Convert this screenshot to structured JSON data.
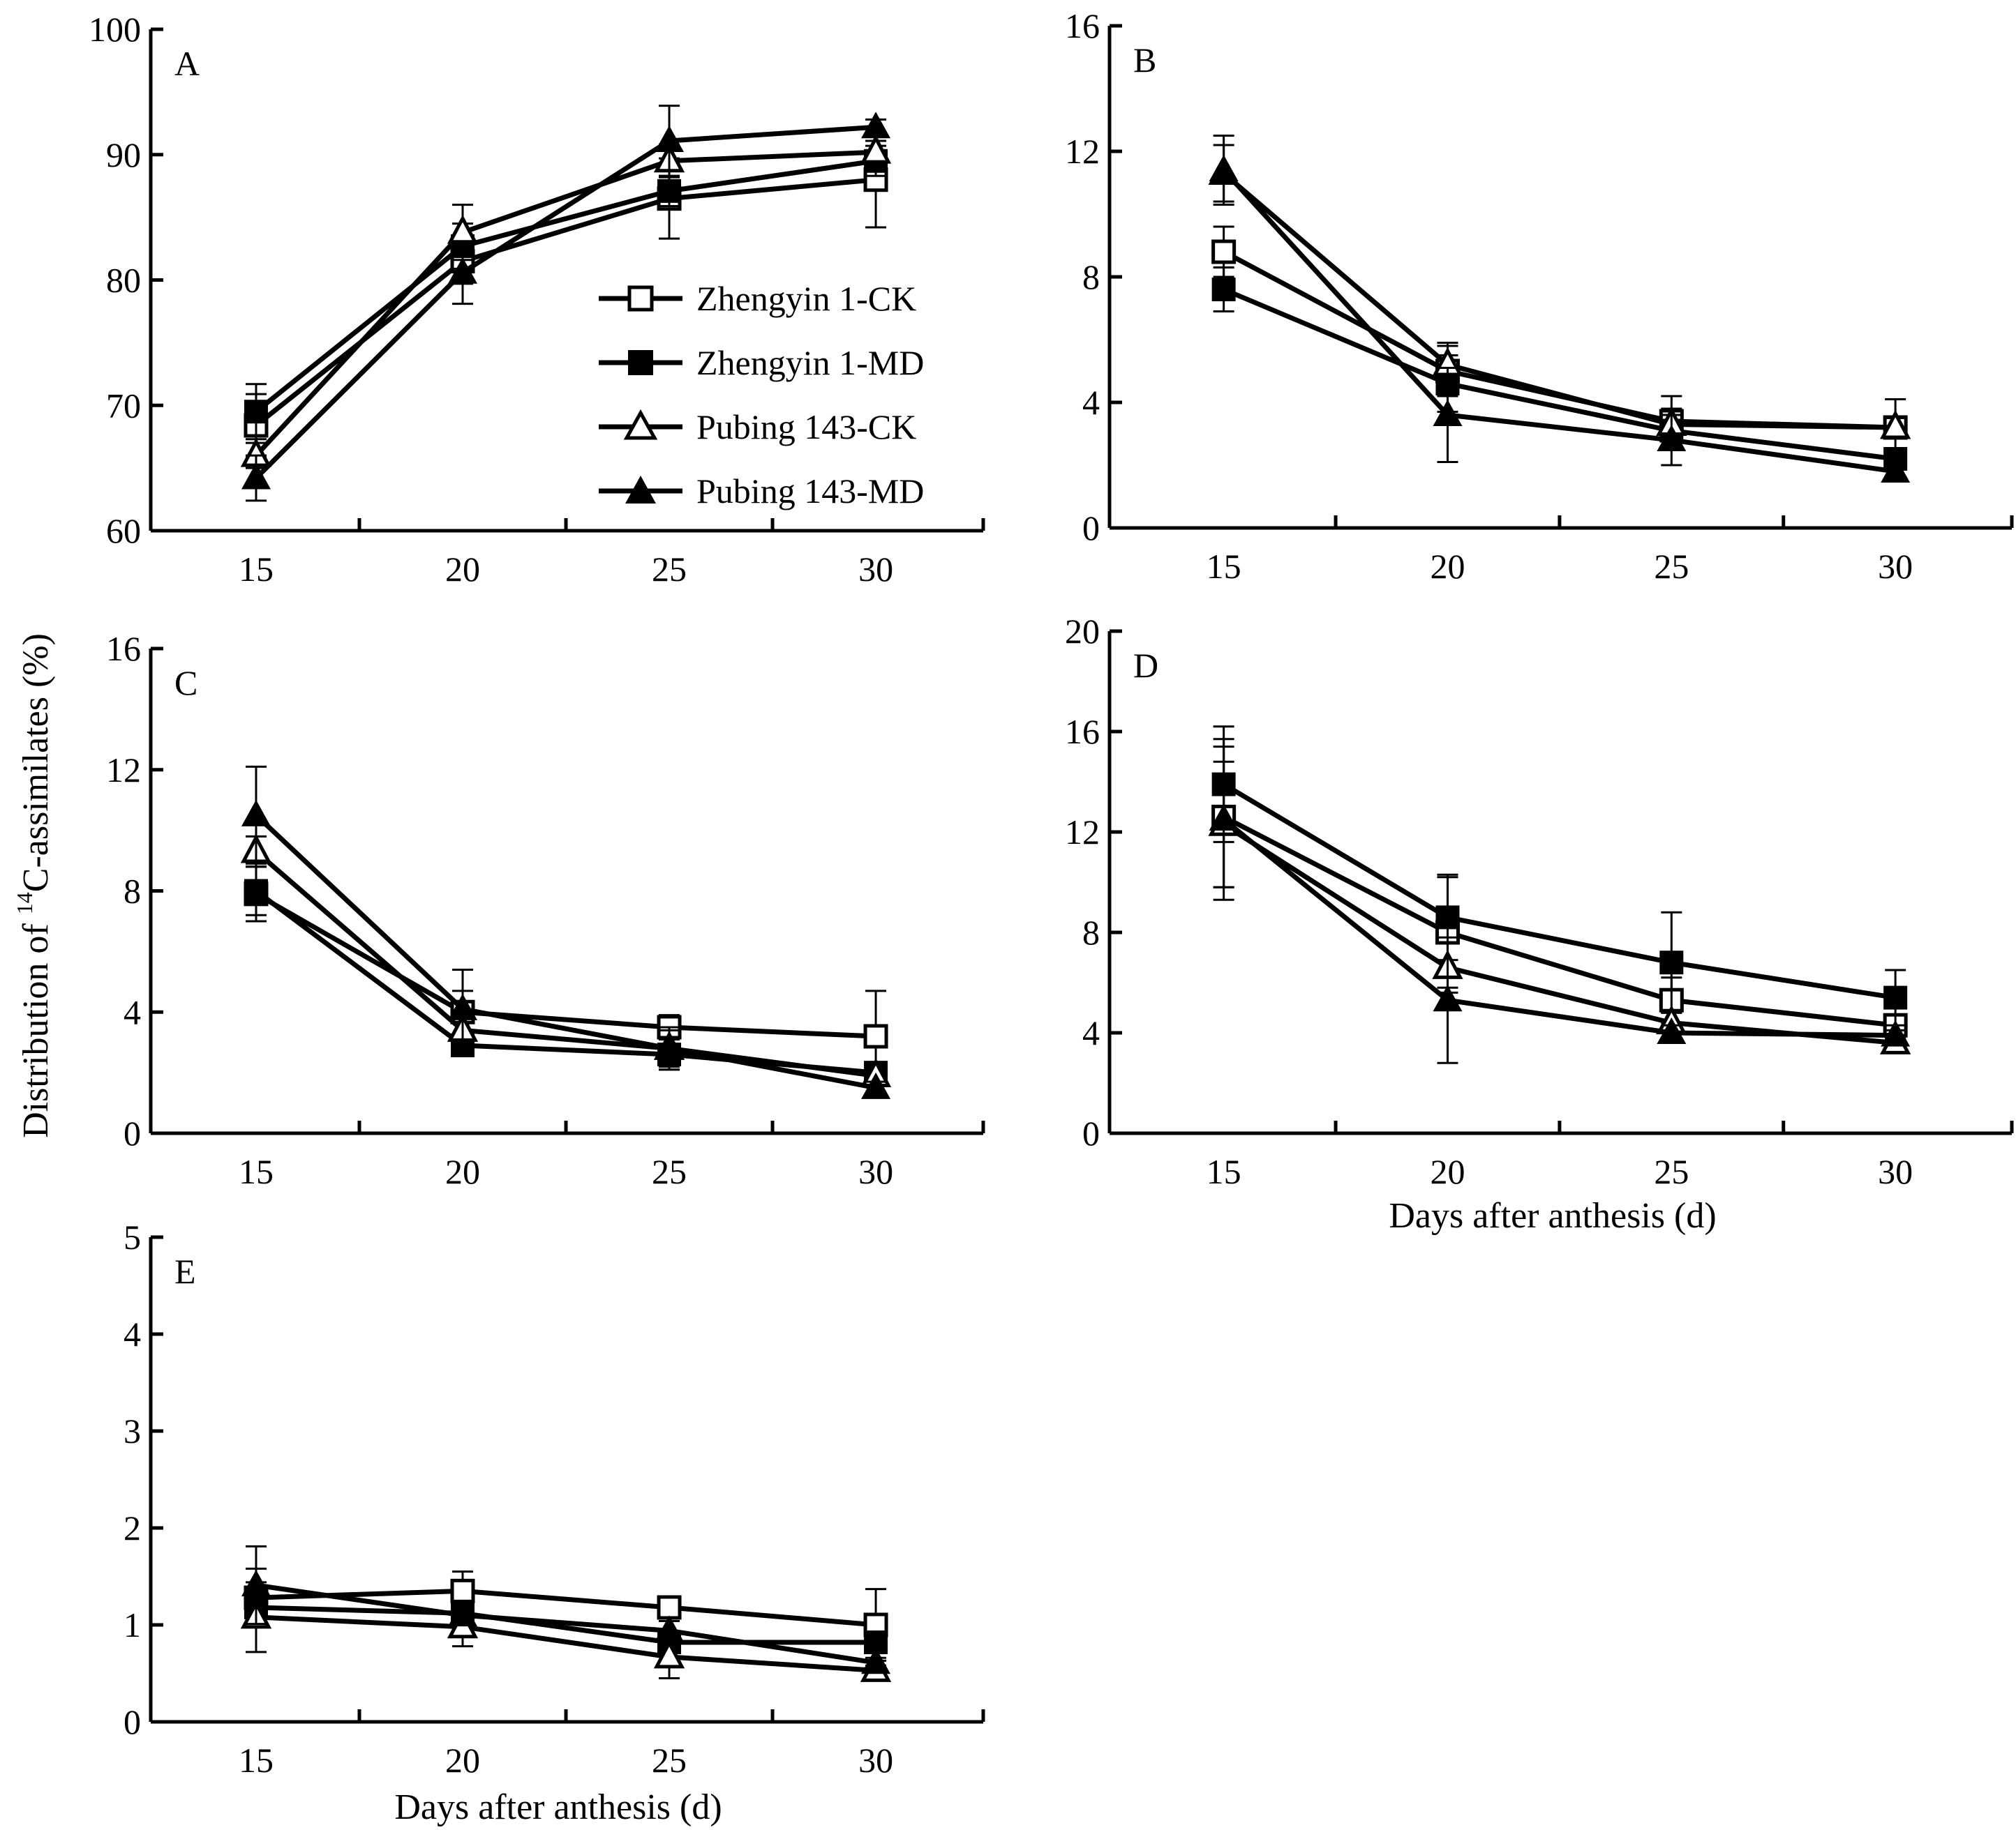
{
  "figure": {
    "ylabel_main": "Distribution of ",
    "ylabel_sup": "14",
    "ylabel_rest": "C-assimilates (%)",
    "xlabel": "Days after anthesis (d)"
  },
  "legend": {
    "placement": "inside panel A, lower-right",
    "entries": [
      {
        "name": "Zhengyin 1-CK",
        "marker": "open-square"
      },
      {
        "name": "Zhengyin 1-MD",
        "marker": "filled-square"
      },
      {
        "name": "Pubing 143-CK",
        "marker": "open-triangle"
      },
      {
        "name": "Pubing 143-MD",
        "marker": "filled-triangle"
      }
    ]
  },
  "colors": {
    "ink": "#000000",
    "background": "#ffffff"
  },
  "chart_data": [
    {
      "panel": "A",
      "type": "line",
      "x": [
        15,
        20,
        25,
        30
      ],
      "xticks": [
        "15",
        "20",
        "25",
        "30"
      ],
      "ylim": [
        60,
        100
      ],
      "yticks": [
        "60",
        "70",
        "80",
        "90",
        "100"
      ],
      "xlabel": "",
      "series": [
        {
          "name": "Zhengyin 1-CK",
          "values": [
            68.4,
            81.5,
            86.5,
            88.0
          ],
          "err": [
            2.5,
            1.8,
            3.2,
            3.8
          ]
        },
        {
          "name": "Zhengyin 1-MD",
          "values": [
            69.5,
            82.7,
            87.1,
            89.5
          ],
          "err": [
            2.2,
            1.8,
            1.2,
            1.2
          ]
        },
        {
          "name": "Pubing 143-CK",
          "values": [
            66.0,
            83.8,
            89.5,
            90.2
          ],
          "err": [
            1.0,
            2.2,
            1.3,
            0.9
          ]
        },
        {
          "name": "Pubing 143-MD",
          "values": [
            64.2,
            80.6,
            91.1,
            92.2
          ],
          "err": [
            1.8,
            2.5,
            2.8,
            0.6
          ]
        }
      ]
    },
    {
      "panel": "B",
      "type": "line",
      "x": [
        15,
        20,
        25,
        30
      ],
      "xticks": [
        "15",
        "20",
        "25",
        "30"
      ],
      "ylim": [
        0,
        16
      ],
      "yticks": [
        "0",
        "4",
        "8",
        "12",
        "16"
      ],
      "xlabel": "",
      "series": [
        {
          "name": "Zhengyin 1-CK",
          "values": [
            8.8,
            5.0,
            3.4,
            3.2
          ],
          "err": [
            0.8,
            0.8,
            0.8,
            0.9
          ]
        },
        {
          "name": "Zhengyin 1-MD",
          "values": [
            7.6,
            4.6,
            3.1,
            2.2
          ],
          "err": [
            0.7,
            0.9,
            0.5,
            0.3
          ]
        },
        {
          "name": "Pubing 143-CK",
          "values": [
            11.3,
            5.2,
            3.3,
            3.2
          ],
          "err": [
            0.9,
            0.7,
            0.5,
            0.3
          ]
        },
        {
          "name": "Pubing 143-MD",
          "values": [
            11.4,
            3.6,
            2.8,
            1.8
          ],
          "err": [
            1.1,
            1.5,
            0.8,
            0.2
          ]
        }
      ]
    },
    {
      "panel": "C",
      "type": "line",
      "x": [
        15,
        20,
        25,
        30
      ],
      "xticks": [
        "15",
        "20",
        "25",
        "30"
      ],
      "ylim": [
        0,
        16
      ],
      "yticks": [
        "0",
        "4",
        "8",
        "12",
        "16"
      ],
      "xlabel": "",
      "series": [
        {
          "name": "Zhengyin 1-CK",
          "values": [
            7.9,
            4.0,
            3.5,
            3.2
          ],
          "err": [
            0.9,
            0.7,
            0.4,
            1.5
          ]
        },
        {
          "name": "Zhengyin 1-MD",
          "values": [
            8.0,
            2.9,
            2.6,
            2.0
          ],
          "err": [
            0.8,
            0.3,
            0.5,
            0.3
          ]
        },
        {
          "name": "Pubing 143-CK",
          "values": [
            9.3,
            3.4,
            2.8,
            1.9
          ],
          "err": [
            0.5,
            0.4,
            0.6,
            0.3
          ]
        },
        {
          "name": "Pubing 143-MD",
          "values": [
            10.5,
            4.1,
            2.8,
            1.5
          ],
          "err": [
            1.6,
            1.3,
            0.7,
            0.2
          ]
        }
      ]
    },
    {
      "panel": "D",
      "type": "line",
      "x": [
        15,
        20,
        25,
        30
      ],
      "xticks": [
        "15",
        "20",
        "25",
        "30"
      ],
      "ylim": [
        0,
        20
      ],
      "yticks": [
        "0",
        "4",
        "8",
        "12",
        "16",
        "20"
      ],
      "xlabel": "Days after anthesis (d)",
      "series": [
        {
          "name": "Zhengyin 1-CK",
          "values": [
            12.6,
            8.0,
            5.3,
            4.3
          ],
          "err": [
            2.8,
            2.2,
            0.9,
            0.4
          ]
        },
        {
          "name": "Zhengyin 1-MD",
          "values": [
            13.9,
            8.6,
            6.8,
            5.4
          ],
          "err": [
            2.3,
            1.7,
            2.0,
            1.1
          ]
        },
        {
          "name": "Pubing 143-CK",
          "values": [
            12.3,
            6.6,
            4.4,
            3.6
          ],
          "err": [
            2.5,
            1.0,
            0.4,
            0.2
          ]
        },
        {
          "name": "Pubing 143-MD",
          "values": [
            12.5,
            5.3,
            4.0,
            3.9
          ],
          "err": [
            3.2,
            2.5,
            0.3,
            0.2
          ]
        }
      ]
    },
    {
      "panel": "E",
      "type": "line",
      "x": [
        15,
        20,
        25,
        30
      ],
      "xticks": [
        "15",
        "20",
        "25",
        "30"
      ],
      "ylim": [
        0,
        5
      ],
      "yticks": [
        "0",
        "1",
        "2",
        "3",
        "4",
        "5"
      ],
      "xlabel": "Days after anthesis (d)",
      "series": [
        {
          "name": "Zhengyin 1-CK",
          "values": [
            1.28,
            1.35,
            1.18,
            1.0
          ],
          "err": [
            0.3,
            0.2,
            0.05,
            0.37
          ]
        },
        {
          "name": "Zhengyin 1-MD",
          "values": [
            1.18,
            1.12,
            0.82,
            0.82
          ],
          "err": [
            0.15,
            0.1,
            0.1,
            0.1
          ]
        },
        {
          "name": "Pubing 143-CK",
          "values": [
            1.08,
            0.98,
            0.67,
            0.53
          ],
          "err": [
            0.36,
            0.2,
            0.22,
            0.05
          ]
        },
        {
          "name": "Pubing 143-MD",
          "values": [
            1.41,
            1.1,
            0.94,
            0.61
          ],
          "err": [
            0.4,
            0.1,
            0.1,
            0.05
          ]
        }
      ]
    }
  ]
}
